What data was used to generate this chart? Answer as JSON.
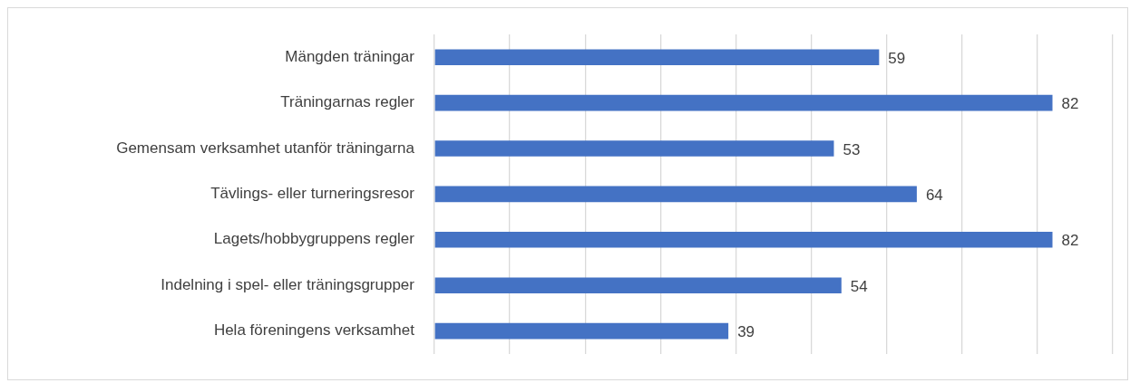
{
  "chart_data": {
    "type": "bar",
    "orientation": "horizontal",
    "categories": [
      "Mängden träningar",
      "Träningarnas regler",
      "Gemensam verksamhet utanför träningarna",
      "Tävlings- eller turneringsresor",
      "Lagets/hobbygruppens regler",
      "Indelning i spel- eller träningsgrupper",
      "Hela föreningens verksamhet"
    ],
    "values": [
      59,
      82,
      53,
      64,
      82,
      54,
      39
    ],
    "color": "#4472c4",
    "xlim": [
      0,
      90
    ],
    "xticks": [
      {
        "value": 0,
        "label": null
      },
      {
        "value": 10,
        "label": null
      },
      {
        "value": 20,
        "label": null
      },
      {
        "value": 30,
        "label": null
      },
      {
        "value": 40,
        "label": null
      },
      {
        "value": 50,
        "label": null
      },
      {
        "value": 60,
        "label": null
      },
      {
        "value": 70,
        "label": null
      },
      {
        "value": 80,
        "label": null
      },
      {
        "value": 90,
        "label": null
      }
    ],
    "tick_labels": "y",
    "grid": "x",
    "legend": false,
    "data_labels": true
  }
}
